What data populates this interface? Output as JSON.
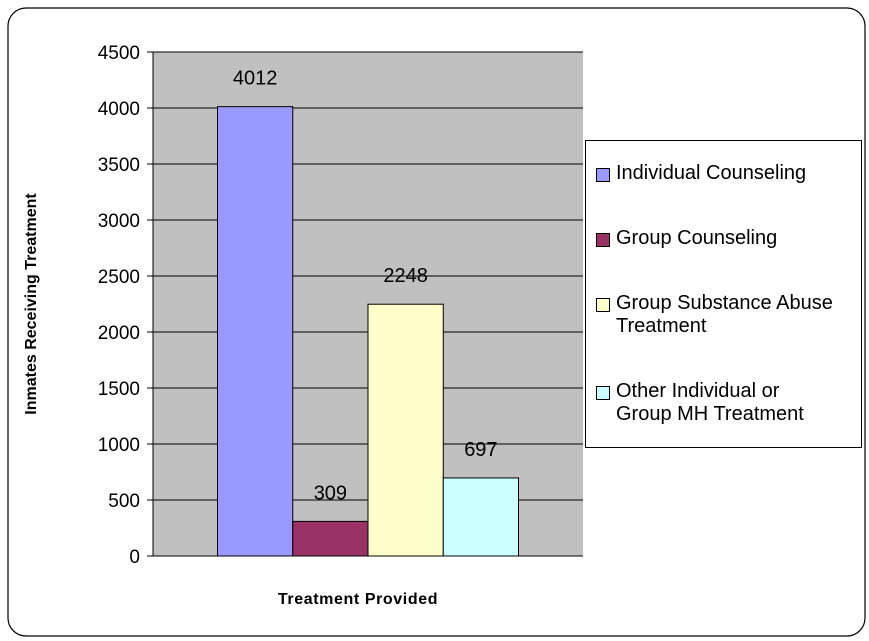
{
  "chart_data": {
    "type": "bar",
    "categories": [
      null
    ],
    "series": [
      {
        "name": "Individual Counseling",
        "color": "#9999ff",
        "values": [
          4012
        ]
      },
      {
        "name": "Group Counseling",
        "color": "#993366",
        "values": [
          309
        ]
      },
      {
        "name": "Group Substance Abuse Treatment",
        "color": "#ffffcc",
        "values": [
          2248
        ]
      },
      {
        "name": "Other Individual or Group MH Treatment",
        "color": "#ccffff",
        "values": [
          697
        ]
      }
    ],
    "x_label": "Treatment Provided",
    "y_label": "Inmates Receiving Treatment",
    "ylim": [
      0,
      4500
    ],
    "yticks": [
      0,
      500,
      1000,
      1500,
      2000,
      2500,
      3000,
      3500,
      4000,
      4500
    ],
    "grid": true,
    "legend": "right",
    "plot_background": "#c0c0c0"
  }
}
